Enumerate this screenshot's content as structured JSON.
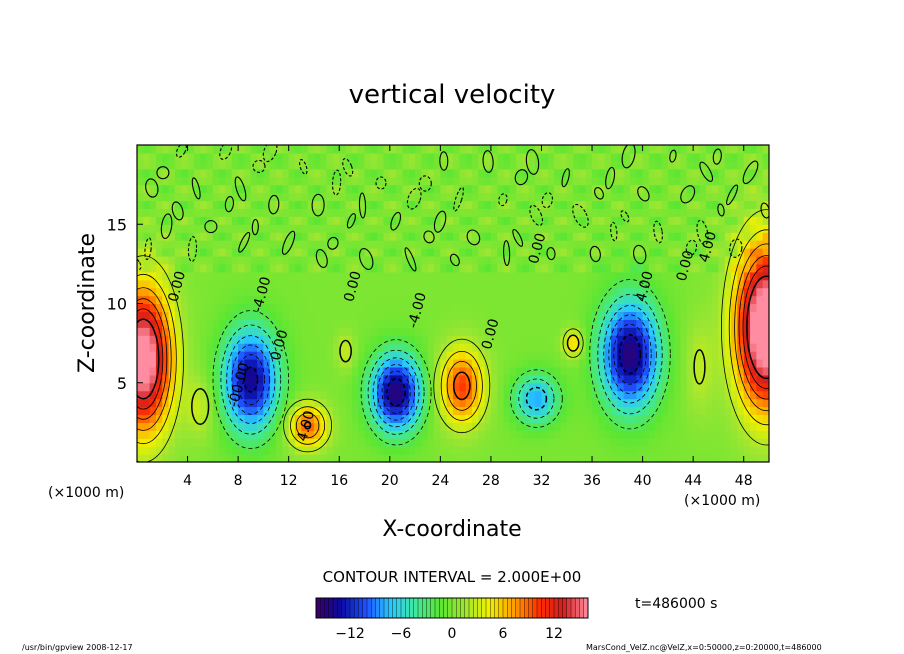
{
  "chart_data": {
    "type": "heatmap",
    "title": "vertical velocity",
    "xlabel": "X-coordinate",
    "ylabel": "Z-coordinate",
    "x_unit": "(×1000 m)",
    "y_unit": "(×1000 m)",
    "xlim": [
      0,
      50
    ],
    "ylim": [
      0,
      20
    ],
    "x_ticks": [
      4,
      8,
      12,
      16,
      20,
      24,
      28,
      32,
      36,
      40,
      44,
      48
    ],
    "y_ticks": [
      5,
      10,
      15
    ],
    "contour_interval_text": "CONTOUR INTERVAL = 2.000E+00",
    "time_text": "t=486000 s",
    "colorbar": {
      "range": [
        -16,
        16
      ],
      "ticks": [
        -12,
        -6,
        0,
        6,
        12
      ],
      "colormap": [
        "#3a0066",
        "#0a0aa0",
        "#1e50ff",
        "#28c8ff",
        "#40e8a0",
        "#5ae632",
        "#9ee632",
        "#f0f000",
        "#ffa000",
        "#ff3000",
        "#d21e1e",
        "#ff8ca0"
      ]
    },
    "contour_labels": [
      {
        "text": "0.00",
        "x": 3.5,
        "y": 11
      },
      {
        "text": "-4.00",
        "x": 10.2,
        "y": 10.5
      },
      {
        "text": "0.00",
        "x": 11.6,
        "y": 7.3
      },
      {
        "text": "4.00",
        "x": 13.7,
        "y": 2.2
      },
      {
        "text": "0.00",
        "x": 17.4,
        "y": 11
      },
      {
        "text": "-4.00",
        "x": 22.5,
        "y": 9.5
      },
      {
        "text": "0.00",
        "x": 28.3,
        "y": 8.0
      },
      {
        "text": "0.00",
        "x": 32.0,
        "y": 13.4
      },
      {
        "text": "4.00",
        "x": 40.5,
        "y": 11.0
      },
      {
        "text": "0.00",
        "x": 43.7,
        "y": 12.3
      },
      {
        "text": "4.00",
        "x": 45.5,
        "y": 13.5
      },
      {
        "text": "-00.00",
        "x": 8.4,
        "y": 4.8
      }
    ]
  },
  "footer": {
    "program": "/usr/bin/gpview  2008-12-17",
    "source": "MarsCond_VelZ.nc@VelZ,x=0:50000,z=0:20000,t=486000"
  }
}
